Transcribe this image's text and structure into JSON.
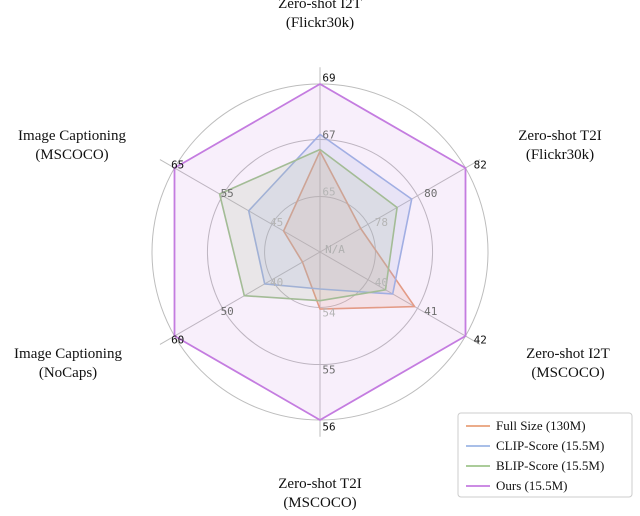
{
  "chart_data": {
    "type": "radar",
    "center_label": "N/A",
    "axes": [
      {
        "label_lines": [
          "Zero-shot I2T",
          "(Flickr30k)"
        ],
        "ticks": [
          "65",
          "67",
          "69"
        ]
      },
      {
        "label_lines": [
          "Zero-shot T2I",
          "(Flickr30k)"
        ],
        "ticks": [
          "78",
          "80",
          "82"
        ]
      },
      {
        "label_lines": [
          "Zero-shot I2T",
          "(MSCOCO)"
        ],
        "ticks": [
          "40",
          "41",
          "42"
        ]
      },
      {
        "label_lines": [
          "Zero-shot T2I",
          "(MSCOCO)"
        ],
        "ticks": [
          "54",
          "55",
          "56"
        ]
      },
      {
        "label_lines": [
          "Image Captioning",
          "(NoCaps)"
        ],
        "ticks": [
          "40",
          "50",
          "60"
        ]
      },
      {
        "label_lines": [
          "Image Captioning",
          "(MSCOCO)"
        ],
        "ticks": [
          "45",
          "55",
          "65"
        ]
      }
    ],
    "series": [
      {
        "name": "Full Size (130M)",
        "color": "#e8a07a",
        "values": [
          0.6,
          0.28,
          0.65,
          0.34,
          0.12,
          0.25
        ]
      },
      {
        "name": "CLIP-Score (15.5M)",
        "color": "#9db6e4",
        "values": [
          0.7,
          0.63,
          0.5,
          0.22,
          0.38,
          0.49
        ]
      },
      {
        "name": "BLIP-Score (15.5M)",
        "color": "#9fc58c",
        "values": [
          0.61,
          0.53,
          0.45,
          0.29,
          0.52,
          0.69
        ]
      },
      {
        "name": "Ours (15.5M)",
        "color": "#c47ce0",
        "values": [
          1.0,
          1.0,
          1.0,
          1.0,
          1.0,
          1.0
        ]
      }
    ],
    "legend_position": "bottom-right"
  }
}
